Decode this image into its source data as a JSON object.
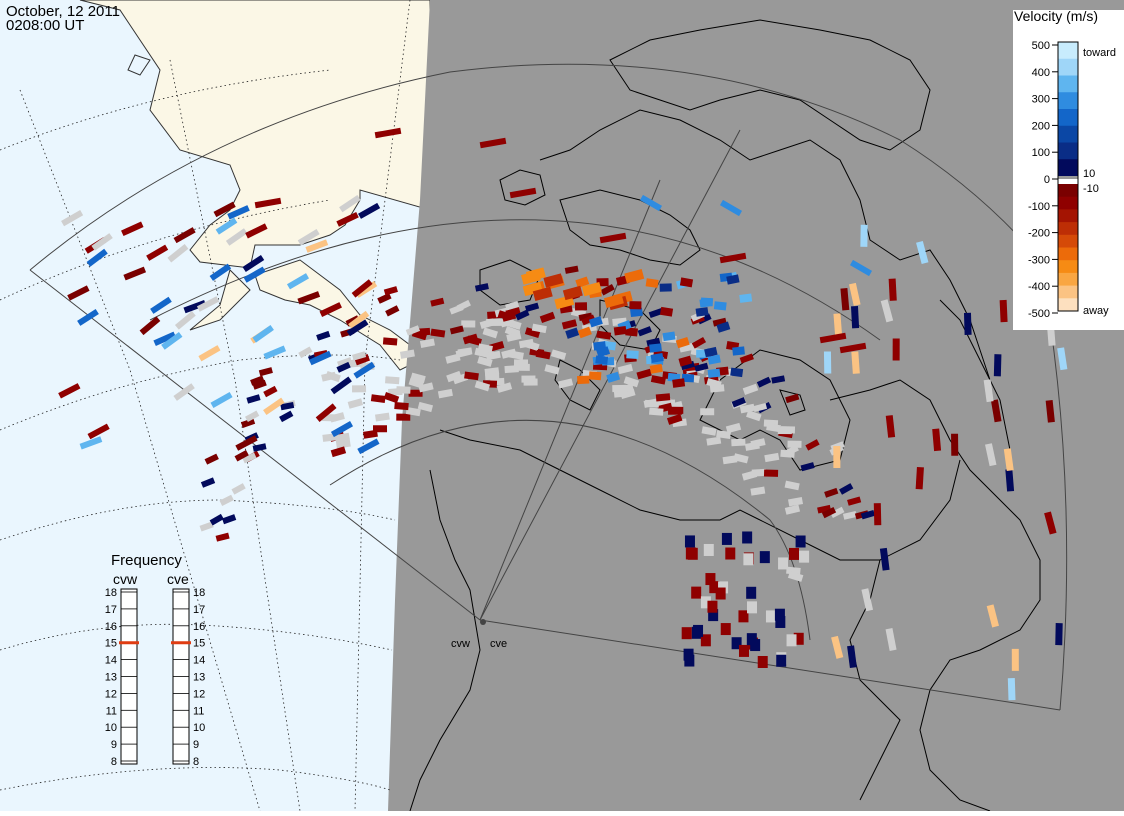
{
  "header": {
    "date": "October, 12 2011",
    "time": "0208:00 UT"
  },
  "colorbar": {
    "title": "Velocity (m/s)",
    "toward_label": "toward",
    "away_label": "away",
    "ticks": [
      "500",
      "400",
      "300",
      "200",
      "100",
      "0",
      "-100",
      "-200",
      "-300",
      "-400",
      "-500"
    ],
    "inner_ticks": [
      "10",
      "-10"
    ]
  },
  "frequency": {
    "title": "Frequency",
    "radar_west": "cvw",
    "radar_east": "cve",
    "levels": [
      "18",
      "17",
      "16",
      "15",
      "14",
      "13",
      "12",
      "11",
      "10",
      "9",
      "8"
    ],
    "selected_west": "15",
    "selected_east": "15"
  },
  "radars": {
    "west_label": "cvw",
    "east_label": "cve"
  },
  "colors": {
    "ocean": "#eaf6fe",
    "land_day": "#fbf7e6",
    "night": "#999999",
    "ground_scatter": "#cfcfcf",
    "toward_strong": "#0a3a8f",
    "away_strong": "#8a0000",
    "away_orange": "#f07d0c",
    "away_pale": "#fcd4ad",
    "frequency_marker": "#e03c12"
  },
  "legend_scale": {
    "toward": [
      "#c8ecfd",
      "#9fd6f8",
      "#5fb5ef",
      "#2f8ce0",
      "#1366c9",
      "#0b47a5",
      "#0a2d86",
      "#020a5c"
    ],
    "away": [
      "#7a0000",
      "#8f0000",
      "#a41402",
      "#bd2e05",
      "#d54a08",
      "#ec6b0a",
      "#f68b14",
      "#f9a642",
      "#fbc383",
      "#fde0bf"
    ]
  }
}
